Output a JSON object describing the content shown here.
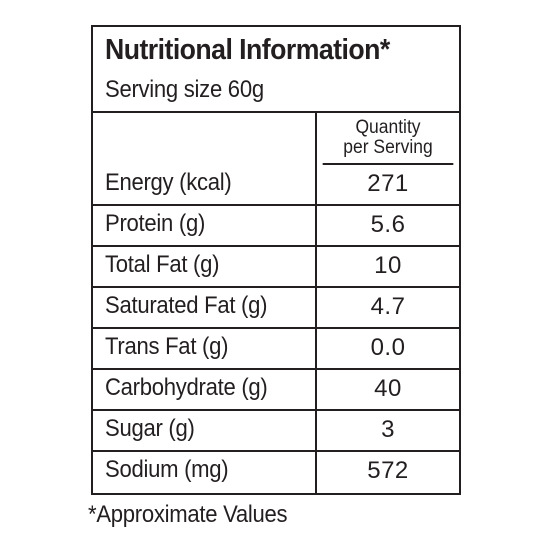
{
  "label": {
    "title": "Nutritional Information*",
    "serving_size": "Serving size 60g",
    "column_header_line1": "Quantity",
    "column_header_line2": "per Serving",
    "rows": [
      {
        "nutrient": "Energy (kcal)",
        "value": "271"
      },
      {
        "nutrient": "Protein (g)",
        "value": "5.6"
      },
      {
        "nutrient": "Total Fat (g)",
        "value": "10"
      },
      {
        "nutrient": "Saturated Fat (g)",
        "value": "4.7"
      },
      {
        "nutrient": "Trans Fat (g)",
        "value": "0.0"
      },
      {
        "nutrient": "Carbohydrate (g)",
        "value": "40"
      },
      {
        "nutrient": "Sugar (g)",
        "value": "3"
      },
      {
        "nutrient": "Sodium (mg)",
        "value": "572"
      }
    ],
    "footnote": "*Approximate Values"
  },
  "colors": {
    "text": "#231f20",
    "border": "#231f20",
    "background": "#ffffff"
  }
}
